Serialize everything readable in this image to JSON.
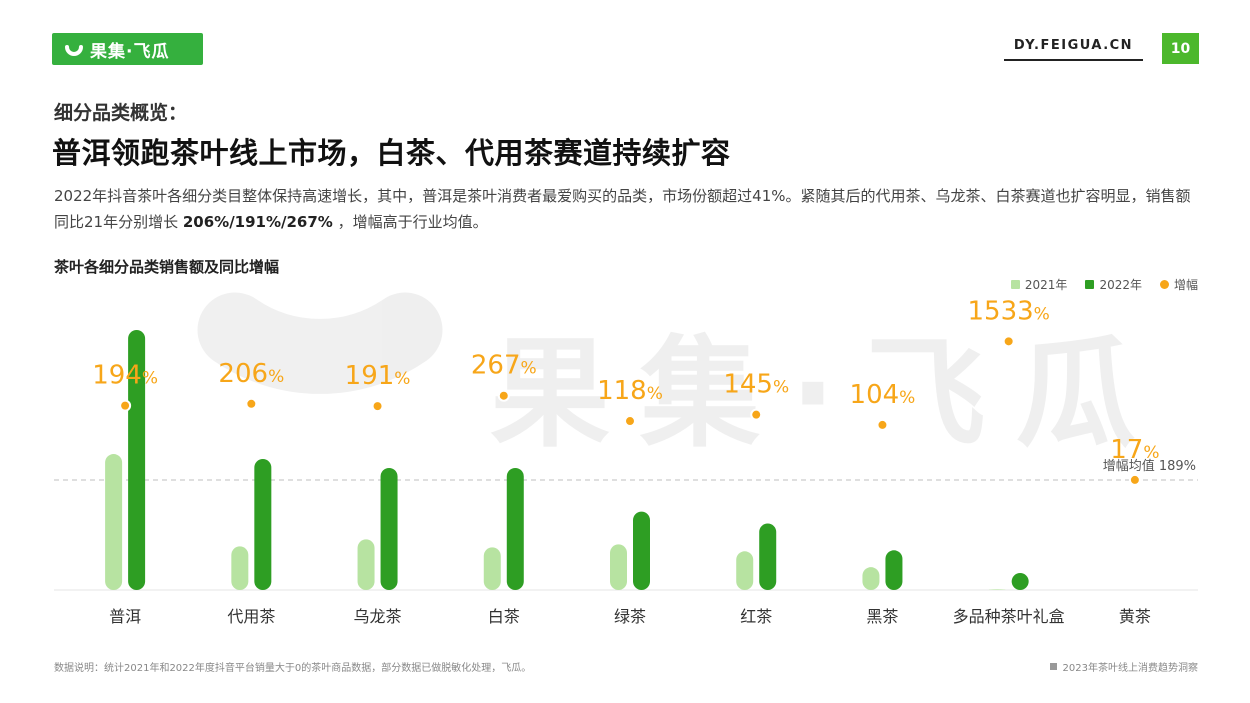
{
  "brand": {
    "logo_text": "果集·飞瓜",
    "site": "DY.FEIGUA.CN",
    "page_number": "10",
    "watermark": "果集·飞瓜"
  },
  "header": {
    "subtitle": "细分品类概览：",
    "title": "普洱领跑茶叶线上市场，白茶、代用茶赛道持续扩容"
  },
  "description": {
    "text_before": "2022年抖音茶叶各细分类目整体保持高速增长，其中，普洱是茶叶消费者最爱购买的品类，市场份额超过41%。紧随其后的代用茶、乌龙茶、白茶赛道也扩容明显，销售额同比21年分别增长 ",
    "bold": "206%/191%/267%",
    "text_after": " ，增幅高于行业均值。"
  },
  "chart_title": "茶叶各细分品类销售额及同比增幅",
  "legend": [
    {
      "label": "2021年",
      "color": "#b7e3a1",
      "kind": "bar"
    },
    {
      "label": "2022年",
      "color": "#2e9e23",
      "kind": "bar"
    },
    {
      "label": "增幅",
      "color": "#f7a619",
      "kind": "dot"
    }
  ],
  "chart_data": {
    "type": "bar",
    "categories": [
      "普洱",
      "代用茶",
      "乌龙茶",
      "白茶",
      "绿茶",
      "红茶",
      "黑茶",
      "多品种茶叶礼盒",
      "黄茶"
    ],
    "series": [
      {
        "name": "2021年",
        "values": [
          137,
          44,
          51,
          43,
          46,
          39,
          23,
          0.6,
          0
        ]
      },
      {
        "name": "2022年",
        "values": [
          262,
          132,
          123,
          123,
          79,
          67,
          40,
          14,
          0
        ]
      },
      {
        "name": "增幅",
        "values": [
          194,
          206,
          191,
          267,
          118,
          145,
          104,
          1533,
          17
        ]
      }
    ],
    "growth_labels": [
      "194%",
      "206%",
      "191%",
      "267%",
      "118%",
      "145%",
      "104%",
      "1533%",
      "17%"
    ],
    "average_line": {
      "label": "增幅均值 189%",
      "value": 189
    },
    "colors": {
      "2021": "#b7e3a1",
      "2022": "#2e9e23",
      "growth": "#f7a619",
      "avg_line": "#cccccc"
    },
    "legend_position": "top-right",
    "grid": false
  },
  "footnote": "数据说明：统计2021年和2022年度抖音平台销量大于0的茶叶商品数据，部分数据已做脱敏化处理，飞瓜。",
  "report_name": "2023年茶叶线上消费趋势洞察"
}
